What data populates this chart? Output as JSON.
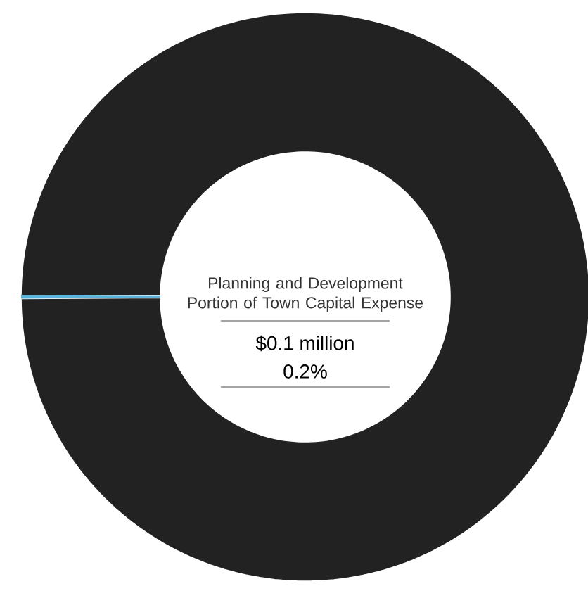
{
  "chart_data": {
    "type": "donut",
    "title": "Planning and Development Portion of Town Capital Expense",
    "categories": [
      null,
      null
    ],
    "values": [
      0.2,
      99.8
    ],
    "colors": [
      "#5ab4dc",
      "#222222"
    ],
    "annotations": [
      "$0.1 million",
      "0.2%"
    ]
  }
}
